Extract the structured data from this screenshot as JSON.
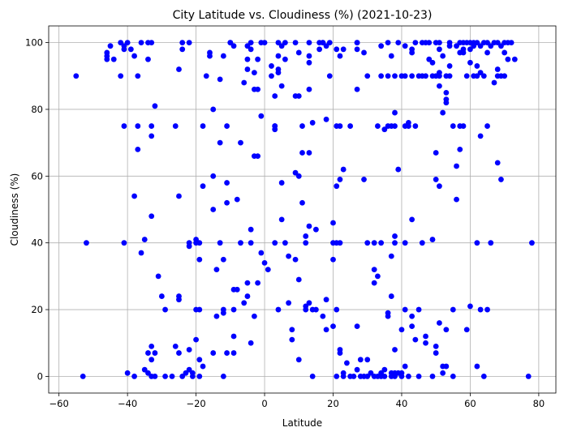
{
  "chart_data": {
    "type": "scatter",
    "title": "City Latitude vs. Cloudiness (%) (2021-10-23)",
    "xlabel": "Latitude",
    "ylabel": "Cloudiness (%)",
    "xlim": [
      -63,
      85
    ],
    "ylim": [
      -5,
      105
    ],
    "xticks": [
      -60,
      -40,
      -20,
      0,
      20,
      40,
      60,
      80
    ],
    "yticks": [
      0,
      20,
      40,
      60,
      80,
      100
    ],
    "grid": true,
    "marker_color": "#0000ff",
    "points": [
      [
        -55,
        90
      ],
      [
        -53,
        0
      ],
      [
        -52,
        40
      ],
      [
        -46,
        97
      ],
      [
        -46,
        96
      ],
      [
        -46,
        95
      ],
      [
        -45,
        99
      ],
      [
        -44,
        95
      ],
      [
        -42,
        100
      ],
      [
        -42,
        90
      ],
      [
        -41,
        98
      ],
      [
        -41,
        99
      ],
      [
        -41,
        40
      ],
      [
        -41,
        75
      ],
      [
        -40,
        1
      ],
      [
        -40,
        100
      ],
      [
        -39,
        98
      ],
      [
        -38,
        0
      ],
      [
        -38,
        96
      ],
      [
        -38,
        54
      ],
      [
        -37,
        90
      ],
      [
        -37,
        75
      ],
      [
        -37,
        68
      ],
      [
        -36,
        100
      ],
      [
        -36,
        37
      ],
      [
        -35,
        2
      ],
      [
        -35,
        41
      ],
      [
        -34,
        100
      ],
      [
        -34,
        95
      ],
      [
        -34,
        7
      ],
      [
        -34,
        1
      ],
      [
        -33,
        100
      ],
      [
        -33,
        75
      ],
      [
        -33,
        72
      ],
      [
        -33,
        48
      ],
      [
        -33,
        9
      ],
      [
        -33,
        5
      ],
      [
        -33,
        0
      ],
      [
        -32,
        81
      ],
      [
        -32,
        7
      ],
      [
        -32,
        0
      ],
      [
        -31,
        30
      ],
      [
        -30,
        24
      ],
      [
        -29,
        20
      ],
      [
        -29,
        0
      ],
      [
        -27,
        0
      ],
      [
        -26,
        75
      ],
      [
        -26,
        9
      ],
      [
        -25,
        92
      ],
      [
        -25,
        54
      ],
      [
        -25,
        24
      ],
      [
        -25,
        23
      ],
      [
        -25,
        7
      ],
      [
        -24,
        100
      ],
      [
        -24,
        98
      ],
      [
        -24,
        0
      ],
      [
        -23,
        1
      ],
      [
        -22,
        100
      ],
      [
        -22,
        40
      ],
      [
        -22,
        39
      ],
      [
        -22,
        8
      ],
      [
        -22,
        2
      ],
      [
        -21,
        1
      ],
      [
        -21,
        0
      ],
      [
        -20,
        40
      ],
      [
        -20,
        41
      ],
      [
        -20,
        11
      ],
      [
        -20,
        20
      ],
      [
        -19,
        40
      ],
      [
        -19,
        35
      ],
      [
        -19,
        20
      ],
      [
        -19,
        5
      ],
      [
        -19,
        0
      ],
      [
        -18,
        75
      ],
      [
        -18,
        57
      ],
      [
        -18,
        3
      ],
      [
        -17,
        90
      ],
      [
        -16,
        97
      ],
      [
        -16,
        96
      ],
      [
        -15,
        80
      ],
      [
        -15,
        60
      ],
      [
        -15,
        50
      ],
      [
        -15,
        7
      ],
      [
        -14,
        32
      ],
      [
        -14,
        18
      ],
      [
        -13,
        70
      ],
      [
        -13,
        40
      ],
      [
        -13,
        89
      ],
      [
        -12,
        96
      ],
      [
        -12,
        20
      ],
      [
        -12,
        19
      ],
      [
        -12,
        35
      ],
      [
        -12,
        0
      ],
      [
        -11,
        75
      ],
      [
        -11,
        58
      ],
      [
        -11,
        52
      ],
      [
        -11,
        7
      ],
      [
        -10,
        100
      ],
      [
        -10,
        100
      ],
      [
        -9,
        99
      ],
      [
        -9,
        26
      ],
      [
        -9,
        20
      ],
      [
        -9,
        12
      ],
      [
        -9,
        7
      ],
      [
        -8,
        53
      ],
      [
        -8,
        26
      ],
      [
        -7,
        40
      ],
      [
        -7,
        70
      ],
      [
        -6,
        88
      ],
      [
        -6,
        22
      ],
      [
        -5,
        99
      ],
      [
        -5,
        95
      ],
      [
        -5,
        92
      ],
      [
        -5,
        28
      ],
      [
        -5,
        24
      ],
      [
        -4,
        100
      ],
      [
        -4,
        98
      ],
      [
        -4,
        40
      ],
      [
        -4,
        44
      ],
      [
        -4,
        10
      ],
      [
        -3,
        86
      ],
      [
        -3,
        91
      ],
      [
        -3,
        66
      ],
      [
        -3,
        18
      ],
      [
        -2,
        86
      ],
      [
        -2,
        95
      ],
      [
        -2,
        66
      ],
      [
        -2,
        28
      ],
      [
        -1,
        78
      ],
      [
        -1,
        37
      ],
      [
        -1,
        100
      ],
      [
        0,
        100
      ],
      [
        0,
        34
      ],
      [
        1,
        32
      ],
      [
        2,
        93
      ],
      [
        2,
        90
      ],
      [
        3,
        84
      ],
      [
        3,
        40
      ],
      [
        3,
        75
      ],
      [
        3,
        74
      ],
      [
        3,
        75
      ],
      [
        4,
        100
      ],
      [
        4,
        91
      ],
      [
        4,
        96
      ],
      [
        4,
        92
      ],
      [
        4,
        20
      ],
      [
        5,
        99
      ],
      [
        5,
        87
      ],
      [
        5,
        58
      ],
      [
        5,
        47
      ],
      [
        6,
        100
      ],
      [
        6,
        95
      ],
      [
        6,
        40
      ],
      [
        7,
        36
      ],
      [
        7,
        22
      ],
      [
        8,
        11
      ],
      [
        8,
        14
      ],
      [
        9,
        100
      ],
      [
        9,
        61
      ],
      [
        9,
        84
      ],
      [
        9,
        35
      ],
      [
        10,
        84
      ],
      [
        10,
        29
      ],
      [
        10,
        5
      ],
      [
        10,
        60
      ],
      [
        10,
        97
      ],
      [
        11,
        67
      ],
      [
        11,
        75
      ],
      [
        11,
        52
      ],
      [
        12,
        40
      ],
      [
        12,
        42
      ],
      [
        12,
        21
      ],
      [
        12,
        20
      ],
      [
        13,
        100
      ],
      [
        13,
        96
      ],
      [
        13,
        94
      ],
      [
        13,
        86
      ],
      [
        13,
        67
      ],
      [
        13,
        45
      ],
      [
        13,
        22
      ],
      [
        14,
        76
      ],
      [
        14,
        20
      ],
      [
        14,
        0
      ],
      [
        15,
        44
      ],
      [
        15,
        20
      ],
      [
        16,
        100
      ],
      [
        16,
        98
      ],
      [
        17,
        100
      ],
      [
        17,
        18
      ],
      [
        17,
        100
      ],
      [
        18,
        99
      ],
      [
        18,
        77
      ],
      [
        18,
        23
      ],
      [
        18,
        14
      ],
      [
        19,
        100
      ],
      [
        19,
        90
      ],
      [
        20,
        46
      ],
      [
        20,
        35
      ],
      [
        20,
        40
      ],
      [
        20,
        15
      ],
      [
        21,
        98
      ],
      [
        21,
        75
      ],
      [
        21,
        57
      ],
      [
        21,
        40
      ],
      [
        21,
        20
      ],
      [
        21,
        0
      ],
      [
        22,
        96
      ],
      [
        22,
        75
      ],
      [
        22,
        59
      ],
      [
        22,
        40
      ],
      [
        22,
        8
      ],
      [
        22,
        7
      ],
      [
        23,
        98
      ],
      [
        23,
        62
      ],
      [
        23,
        1
      ],
      [
        23,
        0
      ],
      [
        24,
        4
      ],
      [
        25,
        75
      ],
      [
        25,
        0
      ],
      [
        26,
        0
      ],
      [
        27,
        100
      ],
      [
        27,
        98
      ],
      [
        27,
        100
      ],
      [
        27,
        86
      ],
      [
        27,
        15
      ],
      [
        27,
        2
      ],
      [
        28,
        5
      ],
      [
        28,
        0
      ],
      [
        29,
        59
      ],
      [
        29,
        97
      ],
      [
        29,
        0
      ],
      [
        30,
        90
      ],
      [
        30,
        40
      ],
      [
        30,
        5
      ],
      [
        30,
        0
      ],
      [
        31,
        1
      ],
      [
        32,
        32
      ],
      [
        32,
        40
      ],
      [
        32,
        28
      ],
      [
        32,
        0
      ],
      [
        33,
        75
      ],
      [
        33,
        30
      ],
      [
        33,
        0
      ],
      [
        34,
        99
      ],
      [
        34,
        90
      ],
      [
        34,
        40
      ],
      [
        34,
        1
      ],
      [
        34,
        0
      ],
      [
        35,
        74
      ],
      [
        35,
        0
      ],
      [
        35,
        2
      ],
      [
        36,
        100
      ],
      [
        36,
        90
      ],
      [
        36,
        75
      ],
      [
        36,
        18
      ],
      [
        36,
        19
      ],
      [
        37,
        96
      ],
      [
        37,
        75
      ],
      [
        37,
        36
      ],
      [
        37,
        24
      ],
      [
        37,
        1
      ],
      [
        37,
        0
      ],
      [
        38,
        90
      ],
      [
        38,
        79
      ],
      [
        38,
        75
      ],
      [
        38,
        40
      ],
      [
        38,
        42
      ],
      [
        38,
        8
      ],
      [
        38,
        1
      ],
      [
        38,
        0
      ],
      [
        39,
        100
      ],
      [
        39,
        62
      ],
      [
        39,
        1
      ],
      [
        40,
        90
      ],
      [
        40,
        14
      ],
      [
        40,
        0
      ],
      [
        40,
        1
      ],
      [
        41,
        99
      ],
      [
        41,
        90
      ],
      [
        41,
        75
      ],
      [
        41,
        40
      ],
      [
        41,
        20
      ],
      [
        41,
        3
      ],
      [
        42,
        76
      ],
      [
        42,
        75
      ],
      [
        42,
        0
      ],
      [
        43,
        97
      ],
      [
        43,
        98
      ],
      [
        43,
        90
      ],
      [
        43,
        47
      ],
      [
        43,
        18
      ],
      [
        43,
        15
      ],
      [
        44,
        100
      ],
      [
        44,
        75
      ],
      [
        44,
        11
      ],
      [
        45,
        90
      ],
      [
        45,
        20
      ],
      [
        45,
        0
      ],
      [
        46,
        90
      ],
      [
        46,
        100
      ],
      [
        46,
        40
      ],
      [
        47,
        100
      ],
      [
        47,
        90
      ],
      [
        47,
        12
      ],
      [
        47,
        10
      ],
      [
        48,
        95
      ],
      [
        48,
        100
      ],
      [
        49,
        94
      ],
      [
        49,
        90
      ],
      [
        49,
        41
      ],
      [
        49,
        0
      ],
      [
        50,
        100
      ],
      [
        50,
        90
      ],
      [
        50,
        59
      ],
      [
        50,
        67
      ],
      [
        50,
        9
      ],
      [
        50,
        7
      ],
      [
        51,
        100
      ],
      [
        51,
        98
      ],
      [
        51,
        91
      ],
      [
        51,
        87
      ],
      [
        51,
        57
      ],
      [
        51,
        16
      ],
      [
        51,
        90
      ],
      [
        52,
        96
      ],
      [
        52,
        79
      ],
      [
        52,
        3
      ],
      [
        52,
        1
      ],
      [
        53,
        90
      ],
      [
        53,
        85
      ],
      [
        53,
        83
      ],
      [
        53,
        82
      ],
      [
        53,
        14
      ],
      [
        53,
        3
      ],
      [
        54,
        100
      ],
      [
        54,
        99
      ],
      [
        54,
        90
      ],
      [
        54,
        93
      ],
      [
        55,
        75
      ],
      [
        55,
        20
      ],
      [
        55,
        0
      ],
      [
        56,
        63
      ],
      [
        56,
        53
      ],
      [
        56,
        99
      ],
      [
        57,
        100
      ],
      [
        57,
        97
      ],
      [
        57,
        75
      ],
      [
        57,
        68
      ],
      [
        58,
        100
      ],
      [
        58,
        98
      ],
      [
        58,
        97
      ],
      [
        58,
        75
      ],
      [
        59,
        100
      ],
      [
        59,
        90
      ],
      [
        59,
        14
      ],
      [
        60,
        100
      ],
      [
        60,
        98
      ],
      [
        60,
        94
      ],
      [
        60,
        21
      ],
      [
        61,
        100
      ],
      [
        61,
        90
      ],
      [
        61,
        99
      ],
      [
        62,
        100
      ],
      [
        62,
        93
      ],
      [
        62,
        90
      ],
      [
        62,
        40
      ],
      [
        62,
        3
      ],
      [
        63,
        99
      ],
      [
        63,
        91
      ],
      [
        63,
        72
      ],
      [
        63,
        20
      ],
      [
        64,
        100
      ],
      [
        64,
        90
      ],
      [
        64,
        0
      ],
      [
        65,
        100
      ],
      [
        65,
        97
      ],
      [
        65,
        75
      ],
      [
        65,
        20
      ],
      [
        66,
        99
      ],
      [
        66,
        40
      ],
      [
        67,
        88
      ],
      [
        67,
        100
      ],
      [
        68,
        100
      ],
      [
        68,
        92
      ],
      [
        68,
        90
      ],
      [
        68,
        64
      ],
      [
        69,
        99
      ],
      [
        69,
        90
      ],
      [
        69,
        59
      ],
      [
        70,
        100
      ],
      [
        70,
        97
      ],
      [
        70,
        90
      ],
      [
        71,
        100
      ],
      [
        71,
        95
      ],
      [
        72,
        100
      ],
      [
        73,
        95
      ],
      [
        77,
        0
      ],
      [
        78,
        40
      ]
    ]
  }
}
